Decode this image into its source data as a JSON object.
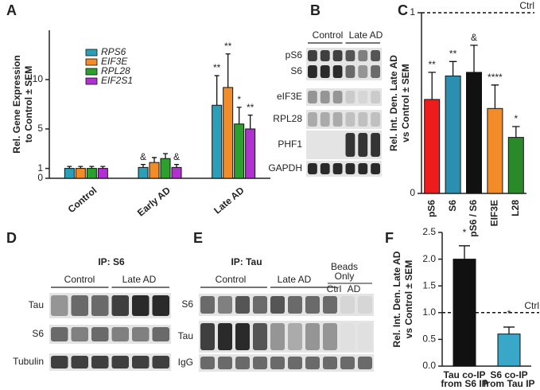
{
  "chart_data": [
    {
      "type": "bar",
      "panel": "A",
      "ylabel": [
        "Rel. Gene Expression",
        "to Control ± SEM"
      ],
      "categories": [
        "Control",
        "Early AD",
        "Late AD"
      ],
      "series": [
        {
          "name": "RPS6",
          "color": "#2b9fb8",
          "values": [
            1,
            1.1,
            7.4
          ],
          "errors": [
            0.2,
            0.3,
            3.0
          ],
          "annotations": [
            null,
            "&",
            "**"
          ]
        },
        {
          "name": "EIF3E",
          "color": "#f28c28",
          "values": [
            1,
            1.6,
            9.2
          ],
          "errors": [
            0.2,
            0.5,
            3.4
          ],
          "annotations": [
            null,
            null,
            "**"
          ]
        },
        {
          "name": "RPL28",
          "color": "#2ca02c",
          "values": [
            1,
            2.0,
            5.5
          ],
          "errors": [
            0.2,
            0.5,
            1.7
          ],
          "annotations": [
            null,
            null,
            "*"
          ]
        },
        {
          "name": "EIF2S1",
          "color": "#b030d0",
          "values": [
            1,
            1.1,
            5.0
          ],
          "errors": [
            0.2,
            0.3,
            1.4
          ],
          "annotations": [
            null,
            "&",
            "**"
          ]
        }
      ],
      "ylim": [
        0,
        15
      ],
      "yticks": [
        0,
        1,
        5,
        10
      ],
      "legend": "upper left"
    },
    {
      "type": "bar",
      "panel": "C",
      "ylabel": [
        "Rel. Int. Den. Late AD",
        "vs Control ± SEM"
      ],
      "categories": [
        "pS6",
        "S6",
        "pS6 / S6",
        "EIF3E",
        "L28"
      ],
      "values": [
        0.52,
        0.65,
        0.67,
        0.47,
        0.31
      ],
      "errors": [
        0.15,
        0.08,
        0.15,
        0.13,
        0.06
      ],
      "colors": [
        "#ee1c1c",
        "#2b8fb0",
        "#111111",
        "#f28c28",
        "#2a8a2a"
      ],
      "annotations": [
        "**",
        "**",
        "&",
        "****",
        "*"
      ],
      "ylim": [
        0,
        1
      ],
      "yticks": [
        0,
        1
      ],
      "reference": {
        "value": 1,
        "label": "Ctrl"
      }
    },
    {
      "type": "bar",
      "panel": "F",
      "ylabel": [
        "Rel. Int. Den. Late AD",
        "vs Control ± SEM"
      ],
      "categories": [
        [
          "Tau co-IP",
          "from S6 IP"
        ],
        [
          "S6 co-IP",
          "from Tau IP"
        ]
      ],
      "values": [
        2.0,
        0.6
      ],
      "errors": [
        0.25,
        0.13
      ],
      "colors": [
        "#111111",
        "#39a8c8"
      ],
      "annotations": [
        "*",
        "*"
      ],
      "ylim": [
        0,
        2.5
      ],
      "yticks": [
        {
          "value": 0,
          "label": "0.0"
        },
        0.5,
        {
          "value": 1,
          "label": "1.0"
        },
        1.5,
        {
          "value": 2,
          "label": "2.0"
        },
        2.5
      ],
      "reference": {
        "value": 1,
        "label": "Ctrl"
      }
    }
  ],
  "blots": [
    {
      "panel": "B",
      "groups": [
        "Control",
        "Late AD"
      ],
      "rows": [
        "pS6",
        "S6",
        "eIF3E",
        "RPL28",
        "PHF1",
        "GAPDH"
      ]
    },
    {
      "panel": "D",
      "title": "IP: S6",
      "groups": [
        "Control",
        "Late AD"
      ],
      "rows": [
        "Tau",
        "S6",
        "Tubulin"
      ]
    },
    {
      "panel": "E",
      "title": "IP: Tau",
      "groups": [
        "Control",
        "Late AD"
      ],
      "beads": {
        "title": [
          "Beads",
          "Only"
        ],
        "lanes": [
          "Ctrl",
          "AD"
        ]
      },
      "rows": [
        "S6",
        "Tau",
        "IgG"
      ]
    }
  ]
}
